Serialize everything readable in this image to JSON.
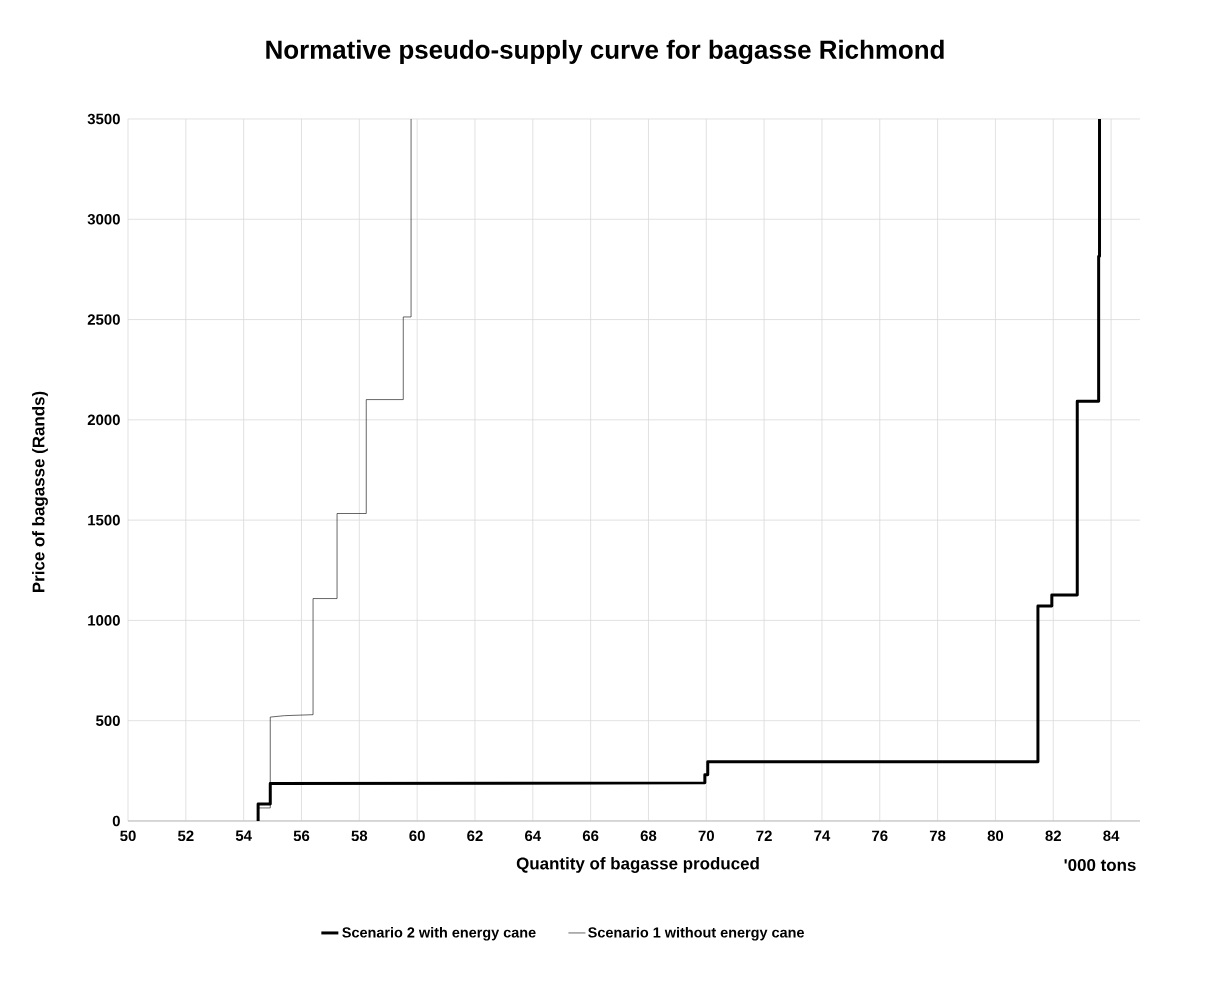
{
  "chart_data": {
    "type": "line",
    "title": "Normative pseudo-supply curve for bagasse Richmond",
    "xlabel": "Quantity of bagasse produced",
    "ylabel": "Price of bagasse (Rands)",
    "annotations": [
      "'000 tons"
    ],
    "xlim": [
      50,
      85
    ],
    "xticks": [
      50,
      52,
      54,
      56,
      58,
      60,
      62,
      64,
      66,
      68,
      70,
      72,
      74,
      76,
      78,
      80,
      82,
      84
    ],
    "ylim": [
      0,
      3500
    ],
    "yticks": [
      0,
      500,
      1000,
      1500,
      2000,
      2500,
      3000,
      3500
    ],
    "grid": true,
    "legend": "bottom",
    "marker": "none",
    "line_style": "solid",
    "series": [
      {
        "name": "Scenario 2 with energy cane",
        "color": "#000000",
        "x": [
          54.5,
          54.5,
          54.92,
          54.92,
          69.95,
          69.95,
          70.05,
          70.05,
          81.47,
          81.47,
          81.95,
          81.95,
          82.83,
          82.83,
          83.57,
          83.57,
          83.6,
          83.6
        ],
        "values": [
          0,
          85,
          85,
          187,
          190,
          230,
          230,
          295,
          295,
          1072,
          1072,
          1127,
          1127,
          2093,
          2093,
          2815,
          2815,
          3500
        ]
      },
      {
        "name": "Scenario 1 without energy cane",
        "color": "#000000",
        "x": [
          54.5,
          54.5,
          54.92,
          54.92,
          55.41,
          56.4,
          56.4,
          57.23,
          57.23,
          58.24,
          58.24,
          59.52,
          59.52,
          59.79,
          59.79
        ],
        "values": [
          0,
          65,
          65,
          518,
          525,
          530,
          1109,
          1109,
          1533,
          1533,
          2101,
          2101,
          2513,
          2513,
          3500
        ]
      }
    ]
  }
}
